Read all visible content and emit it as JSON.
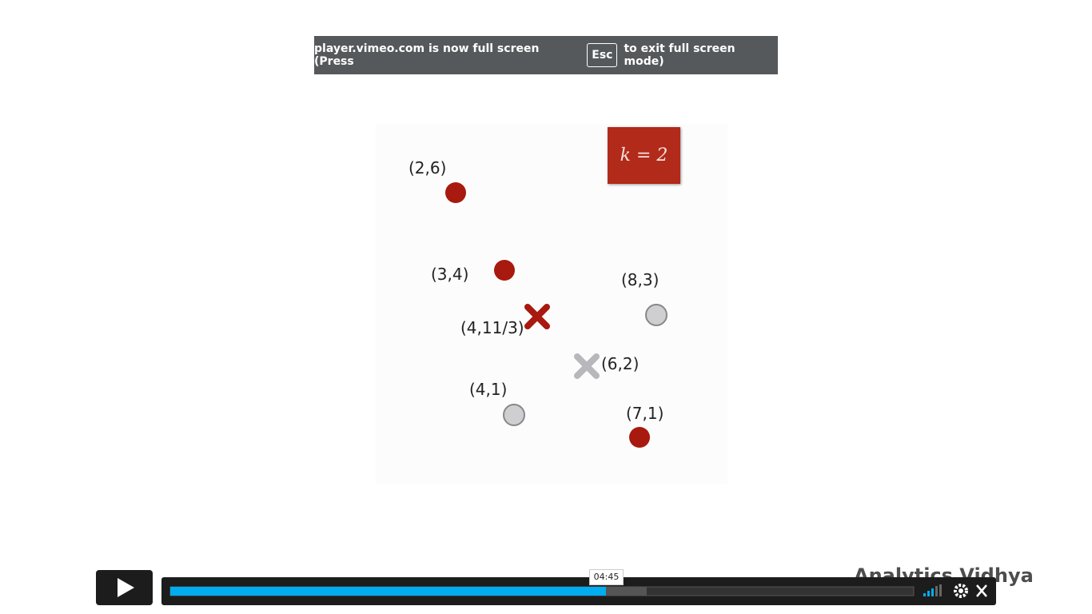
{
  "banner": {
    "before": "player.vimeo.com is now full screen (Press",
    "key": "Esc",
    "after": "to exit full screen mode)"
  },
  "slide": {
    "badge": "k = 2",
    "points": [
      {
        "label": "(2,6)"
      },
      {
        "label": "(3,4)"
      },
      {
        "label": "(4,11/3)"
      },
      {
        "label": "(8,3)"
      },
      {
        "label": "(6,2)"
      },
      {
        "label": "(4,1)"
      },
      {
        "label": "(7,1)"
      }
    ]
  },
  "player": {
    "time": "04:45",
    "logo": "Analytics Vidhya"
  }
}
